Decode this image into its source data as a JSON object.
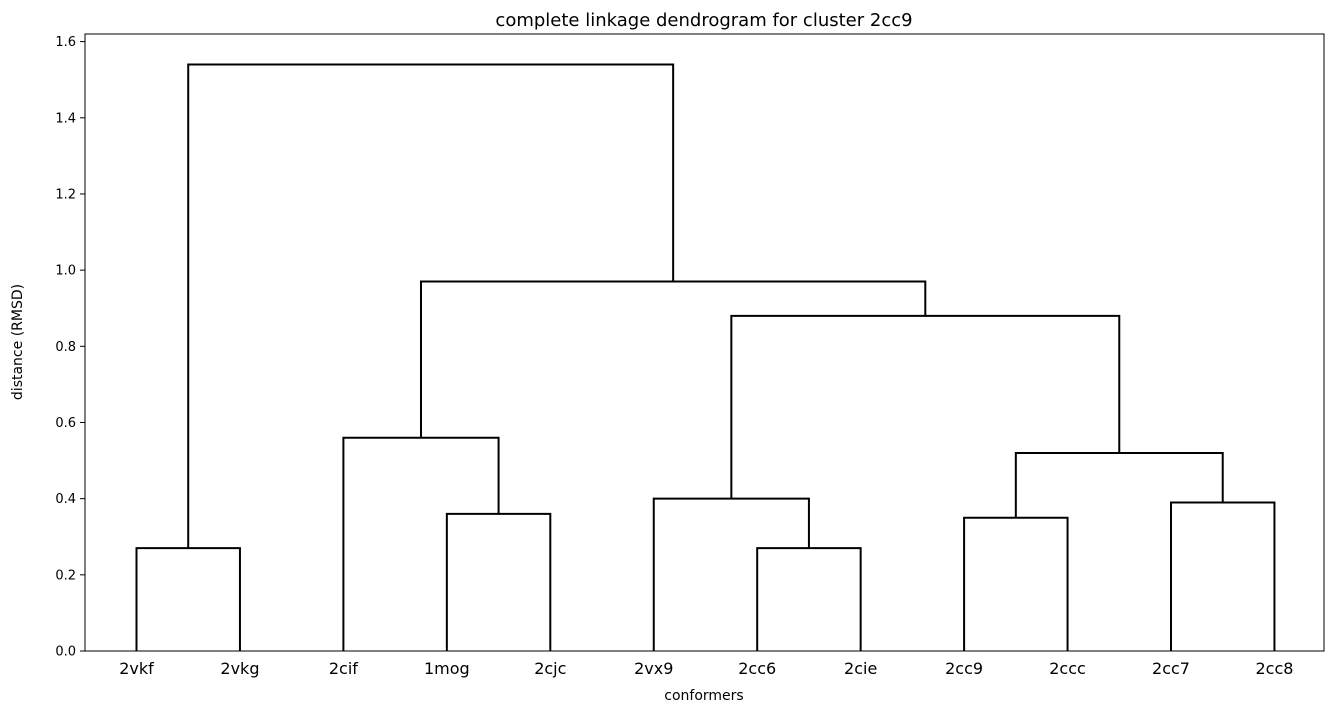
{
  "chart_data": {
    "type": "dendrogram",
    "title": "complete linkage dendrogram for cluster 2cc9",
    "xlabel": "conformers",
    "ylabel": "distance (RMSD)",
    "ylim": [
      0,
      1.62
    ],
    "yticks": [
      "0.0",
      "0.2",
      "0.4",
      "0.6",
      "0.8",
      "1.0",
      "1.2",
      "1.4",
      "1.6"
    ],
    "ytick_values": [
      0,
      0.2,
      0.4,
      0.6,
      0.8,
      1.0,
      1.2,
      1.4,
      1.6
    ],
    "leaves": [
      "2vkf",
      "2vkg",
      "2cif",
      "1mog",
      "2cjc",
      "2vx9",
      "2cc6",
      "2cie",
      "2cc9",
      "2ccc",
      "2cc7",
      "2cc8"
    ],
    "merges": [
      {
        "left": "2vkf",
        "right": "2vkg",
        "height": 0.27
      },
      {
        "left": "1mog",
        "right": "2cjc",
        "height": 0.36
      },
      {
        "left": "2cif",
        "right": "(1mog, 2cjc)",
        "height": 0.56
      },
      {
        "left": "2cc6",
        "right": "2cie",
        "height": 0.27
      },
      {
        "left": "2vx9",
        "right": "(2cc6, 2cie)",
        "height": 0.4
      },
      {
        "left": "2cc9",
        "right": "2ccc",
        "height": 0.35
      },
      {
        "left": "2cc7",
        "right": "2cc8",
        "height": 0.39
      },
      {
        "left": "(2cc9, 2ccc)",
        "right": "(2cc7, 2cc8)",
        "height": 0.52
      },
      {
        "left": "(2vx9, 2cc6, 2cie)",
        "right": "(2cc9, 2ccc, 2cc7, 2cc8)",
        "height": 0.88
      },
      {
        "left": "(2cif, 1mog, 2cjc)",
        "right": "(2vx9 ... 2cc8)",
        "height": 0.97
      },
      {
        "left": "(2vkf, 2vkg)",
        "right": "(2cif ... 2cc8)",
        "height": 1.54
      }
    ],
    "grid": false,
    "legend": "none",
    "line_color": "#000000"
  }
}
